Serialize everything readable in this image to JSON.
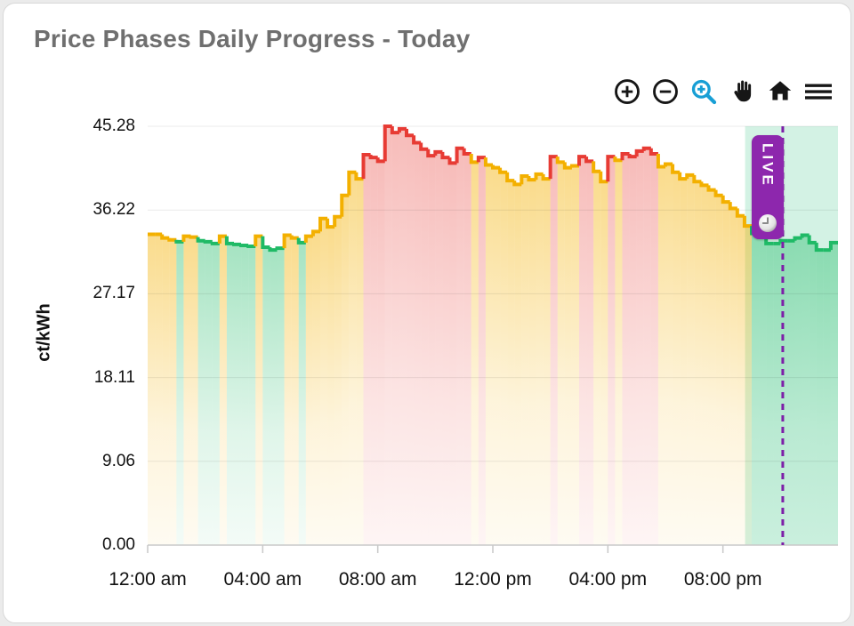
{
  "card": {
    "title": "Price Phases Daily Progress - Today"
  },
  "toolbar": {
    "tools": [
      "zoom-in",
      "zoom-out",
      "box-zoom",
      "pan",
      "reset-home",
      "menu"
    ],
    "active_tool": "box-zoom",
    "icon_color": "#161616",
    "active_color": "#189fd5"
  },
  "live": {
    "label": "LIVE",
    "badge_color": "#8d27ad",
    "line_color": "#7d1fa8"
  },
  "chart_data": {
    "type": "area",
    "subtype": "step-phase",
    "title": "Price Phases Daily Progress - Today",
    "xlabel": "",
    "ylabel": "ct/kWh",
    "ylim": [
      0,
      45.28
    ],
    "xlim_hours": [
      0,
      24
    ],
    "grid": true,
    "legend": false,
    "y_ticks": [
      45.28,
      36.22,
      27.17,
      18.11,
      9.06,
      0.0
    ],
    "y_tick_labels": [
      "45.28",
      "36.22",
      "27.17",
      "18.11",
      "9.06",
      "0.00"
    ],
    "x_ticks": [
      {
        "hour": 0,
        "label": "12:00 am"
      },
      {
        "hour": 4,
        "label": "04:00 am"
      },
      {
        "hour": 8,
        "label": "08:00 am"
      },
      {
        "hour": 12,
        "label": "12:00 pm"
      },
      {
        "hour": 16,
        "label": "04:00 pm"
      },
      {
        "hour": 20,
        "label": "08:00 pm"
      }
    ],
    "step_minutes": 15,
    "start_time": "00:00",
    "phase_colors": {
      "G": "#1fba66",
      "Y": "#f3b000",
      "R": "#e73b34"
    },
    "series": [
      {
        "name": "price_ct_per_kWh",
        "values": [
          33.6,
          33.6,
          33.2,
          33.0,
          32.8,
          33.4,
          33.3,
          32.9,
          32.8,
          32.6,
          33.4,
          32.6,
          32.5,
          32.4,
          32.3,
          33.4,
          32.2,
          31.9,
          32.1,
          33.5,
          33.2,
          32.7,
          33.4,
          33.9,
          35.3,
          34.4,
          35.5,
          37.8,
          40.3,
          39.6,
          42.2,
          41.9,
          41.5,
          45.28,
          44.6,
          45.0,
          44.3,
          43.5,
          42.8,
          42.1,
          42.5,
          41.9,
          41.3,
          42.9,
          42.3,
          41.4,
          41.9,
          41.1,
          40.8,
          40.3,
          39.4,
          39.0,
          39.9,
          39.5,
          40.1,
          39.6,
          42.0,
          41.4,
          40.8,
          41.0,
          42.0,
          41.5,
          40.4,
          39.3,
          42.0,
          41.6,
          42.3,
          42.0,
          42.6,
          42.9,
          42.3,
          40.9,
          41.2,
          40.3,
          39.6,
          40.0,
          39.3,
          38.9,
          38.4,
          37.8,
          37.1,
          36.4,
          35.6,
          34.5,
          33.7,
          33.3,
          32.6,
          32.6,
          32.9,
          32.9,
          33.2,
          33.5,
          32.7,
          31.9,
          31.9,
          32.7
        ],
        "phases": [
          "Y",
          "Y",
          "Y",
          "Y",
          "G",
          "Y",
          "Y",
          "G",
          "G",
          "G",
          "Y",
          "G",
          "G",
          "G",
          "G",
          "Y",
          "G",
          "G",
          "G",
          "Y",
          "Y",
          "G",
          "Y",
          "Y",
          "Y",
          "Y",
          "Y",
          "Y",
          "Y",
          "Y",
          "R",
          "R",
          "R",
          "R",
          "R",
          "R",
          "R",
          "R",
          "R",
          "R",
          "R",
          "R",
          "R",
          "R",
          "R",
          "Y",
          "R",
          "Y",
          "Y",
          "Y",
          "Y",
          "Y",
          "Y",
          "Y",
          "Y",
          "Y",
          "R",
          "Y",
          "Y",
          "Y",
          "R",
          "R",
          "Y",
          "Y",
          "R",
          "Y",
          "R",
          "R",
          "R",
          "R",
          "R",
          "Y",
          "Y",
          "Y",
          "Y",
          "Y",
          "Y",
          "Y",
          "Y",
          "Y",
          "Y",
          "Y",
          "Y",
          "Y",
          "G",
          "G",
          "G",
          "G",
          "G",
          "G",
          "G",
          "G",
          "G",
          "G",
          "G",
          "G"
        ]
      }
    ],
    "live_time_hours": 22.08,
    "highlight_band": {
      "start_hours": 20.77,
      "end_hours": 24,
      "color": "rgba(72,199,142,0.24)"
    }
  }
}
